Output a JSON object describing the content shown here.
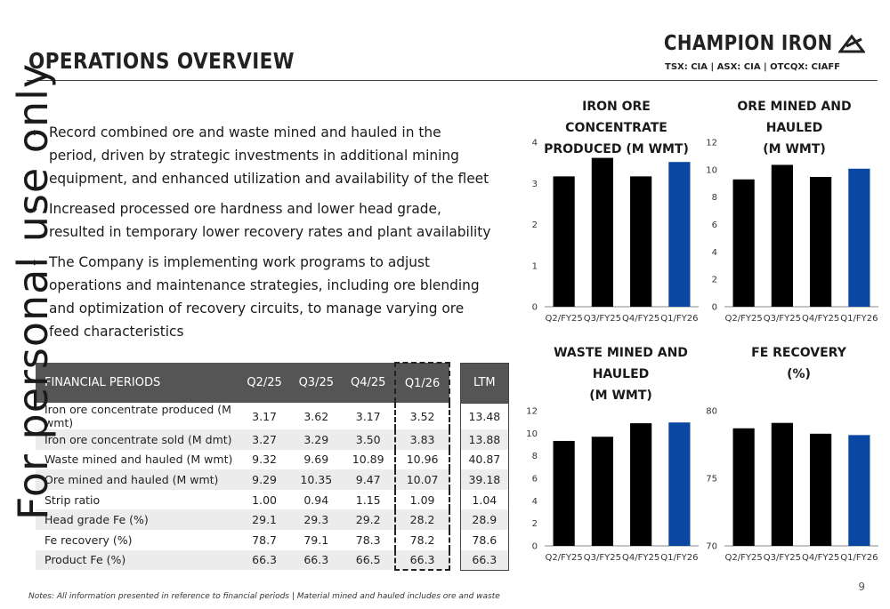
{
  "header": {
    "title": "OPERATIONS OVERVIEW",
    "logo_text": "CHAMPION IRON",
    "ticker": "TSX: CIA  |  ASX: CIA | OTCQX: CIAFF"
  },
  "watermark": "For personal use only",
  "bullets": [
    "Record combined ore and waste mined and hauled in the period, driven by strategic investments in additional mining equipment, and enhanced utilization and availability of the fleet",
    "Increased processed ore hardness and lower head grade, resulted in temporary lower recovery rates and plant availability",
    "The Company is implementing work programs to adjust operations and maintenance strategies, including ore blending and optimization of recovery circuits, to manage varying ore feed characteristics"
  ],
  "bullet_arrow": "→",
  "table": {
    "headers": [
      "FINANCIAL PERIODS",
      "Q2/25",
      "Q3/25",
      "Q4/25",
      "Q1/26",
      "LTM"
    ],
    "rows": [
      [
        "Iron ore concentrate produced (M wmt)",
        "3.17",
        "3.62",
        "3.17",
        "3.52",
        "13.48"
      ],
      [
        "Iron ore concentrate sold (M dmt)",
        "3.27",
        "3.29",
        "3.50",
        "3.83",
        "13.88"
      ],
      [
        "Waste mined and hauled (M wmt)",
        "9.32",
        "9.69",
        "10.89",
        "10.96",
        "40.87"
      ],
      [
        "Ore mined and hauled (M wmt)",
        "9.29",
        "10.35",
        "9.47",
        "10.07",
        "39.18"
      ],
      [
        "Strip ratio",
        "1.00",
        "0.94",
        "1.15",
        "1.09",
        "1.04"
      ],
      [
        "Head grade Fe (%)",
        "29.1",
        "29.3",
        "29.2",
        "28.2",
        "28.9"
      ],
      [
        "Fe recovery (%)",
        "78.7",
        "79.1",
        "78.3",
        "78.2",
        "78.6"
      ],
      [
        "Product Fe (%)",
        "66.3",
        "66.3",
        "66.5",
        "66.3",
        "66.3"
      ]
    ]
  },
  "colors": {
    "bar_default": "#000000",
    "bar_highlight": "#0a47a3",
    "table_header": "#555555"
  },
  "chart_data": [
    {
      "type": "bar",
      "title": "IRON ORE CONCENTRATE\nPRODUCED (M WMT)",
      "categories": [
        "Q2/FY25",
        "Q3/FY25",
        "Q4/FY25",
        "Q1/FY26"
      ],
      "values": [
        3.17,
        3.62,
        3.17,
        3.52
      ],
      "ylim": [
        0,
        4
      ],
      "yticks": [
        "0",
        "1",
        "2",
        "3",
        "4"
      ],
      "highlight_index": 3,
      "grid": false
    },
    {
      "type": "bar",
      "title": "ORE MINED AND HAULED\n(M WMT)",
      "categories": [
        "Q2/FY25",
        "Q3/FY25",
        "Q4/FY25",
        "Q1/FY26"
      ],
      "values": [
        9.29,
        10.35,
        9.47,
        10.07
      ],
      "ylim": [
        0,
        12
      ],
      "yticks": [
        "0",
        "2",
        "4",
        "6",
        "8",
        "10",
        "12"
      ],
      "highlight_index": 3,
      "grid": false
    },
    {
      "type": "bar",
      "title": "WASTE MINED AND HAULED\n(M WMT)",
      "categories": [
        "Q2/FY25",
        "Q3/FY25",
        "Q4/FY25",
        "Q1/FY26"
      ],
      "values": [
        9.32,
        9.69,
        10.89,
        10.96
      ],
      "ylim": [
        0,
        12
      ],
      "yticks": [
        "0",
        "2",
        "4",
        "6",
        "8",
        "10",
        "12"
      ],
      "highlight_index": 3,
      "grid": false
    },
    {
      "type": "bar",
      "title": "FE RECOVERY\n(%)",
      "categories": [
        "Q2/FY25",
        "Q3/FY25",
        "Q4/FY25",
        "Q1/FY26"
      ],
      "values": [
        78.7,
        79.1,
        78.3,
        78.2
      ],
      "ylim": [
        70,
        80
      ],
      "yticks": [
        "70",
        "75",
        "80"
      ],
      "highlight_index": 3,
      "grid": false
    }
  ],
  "footer": {
    "notes": "Notes: All information presented in reference to financial periods | Material mined and hauled includes ore and waste",
    "page_number": "9"
  }
}
